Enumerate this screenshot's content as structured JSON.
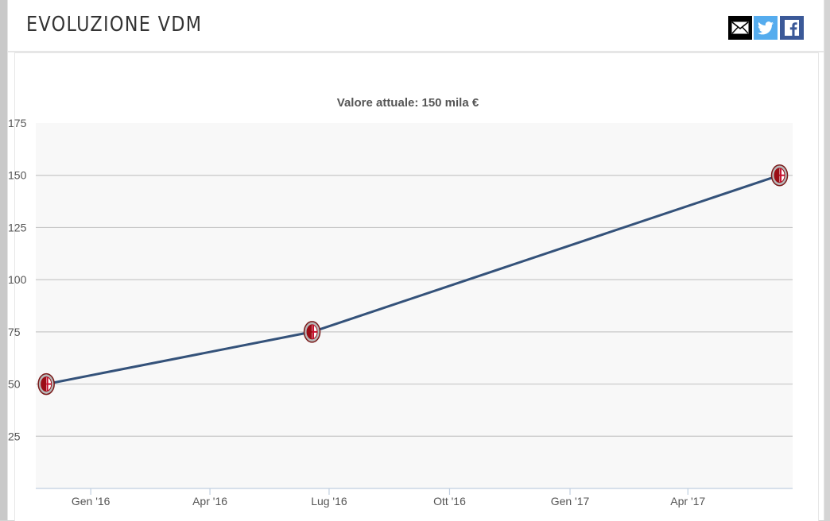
{
  "header": {
    "title": "EVOLUZIONE VDM"
  },
  "share": [
    {
      "name": "mail-share-button",
      "icon": "envelope-icon",
      "color": "#000000"
    },
    {
      "name": "twitter-share-button",
      "icon": "twitter-bird-icon",
      "color": "#55acee"
    },
    {
      "name": "facebook-share-button",
      "icon": "facebook-f-icon",
      "color": "#3b5998"
    }
  ],
  "chart_data": {
    "type": "line",
    "title": "Valore attuale: 150 mila €",
    "xlabel": "",
    "ylabel": "",
    "x_ticks": [
      "Gen '16",
      "Apr '16",
      "Lug '16",
      "Ott '16",
      "Gen '17",
      "Apr '17"
    ],
    "x_tick_dates": [
      "2016-01-01",
      "2016-04-01",
      "2016-07-01",
      "2016-10-01",
      "2017-01-01",
      "2017-04-01"
    ],
    "x_range": [
      "2015-11-20",
      "2017-06-20"
    ],
    "y_ticks": [
      25,
      50,
      75,
      100,
      125,
      150,
      175
    ],
    "ylim": [
      0,
      175
    ],
    "grid": true,
    "line_color": "#34527a",
    "plot_background": "#f8f8f8",
    "marker": "club-crest-icon",
    "series": [
      {
        "x": [
          "2015-11-28",
          "2016-06-18",
          "2017-06-10"
        ],
        "values": [
          50,
          75,
          150
        ]
      }
    ]
  }
}
